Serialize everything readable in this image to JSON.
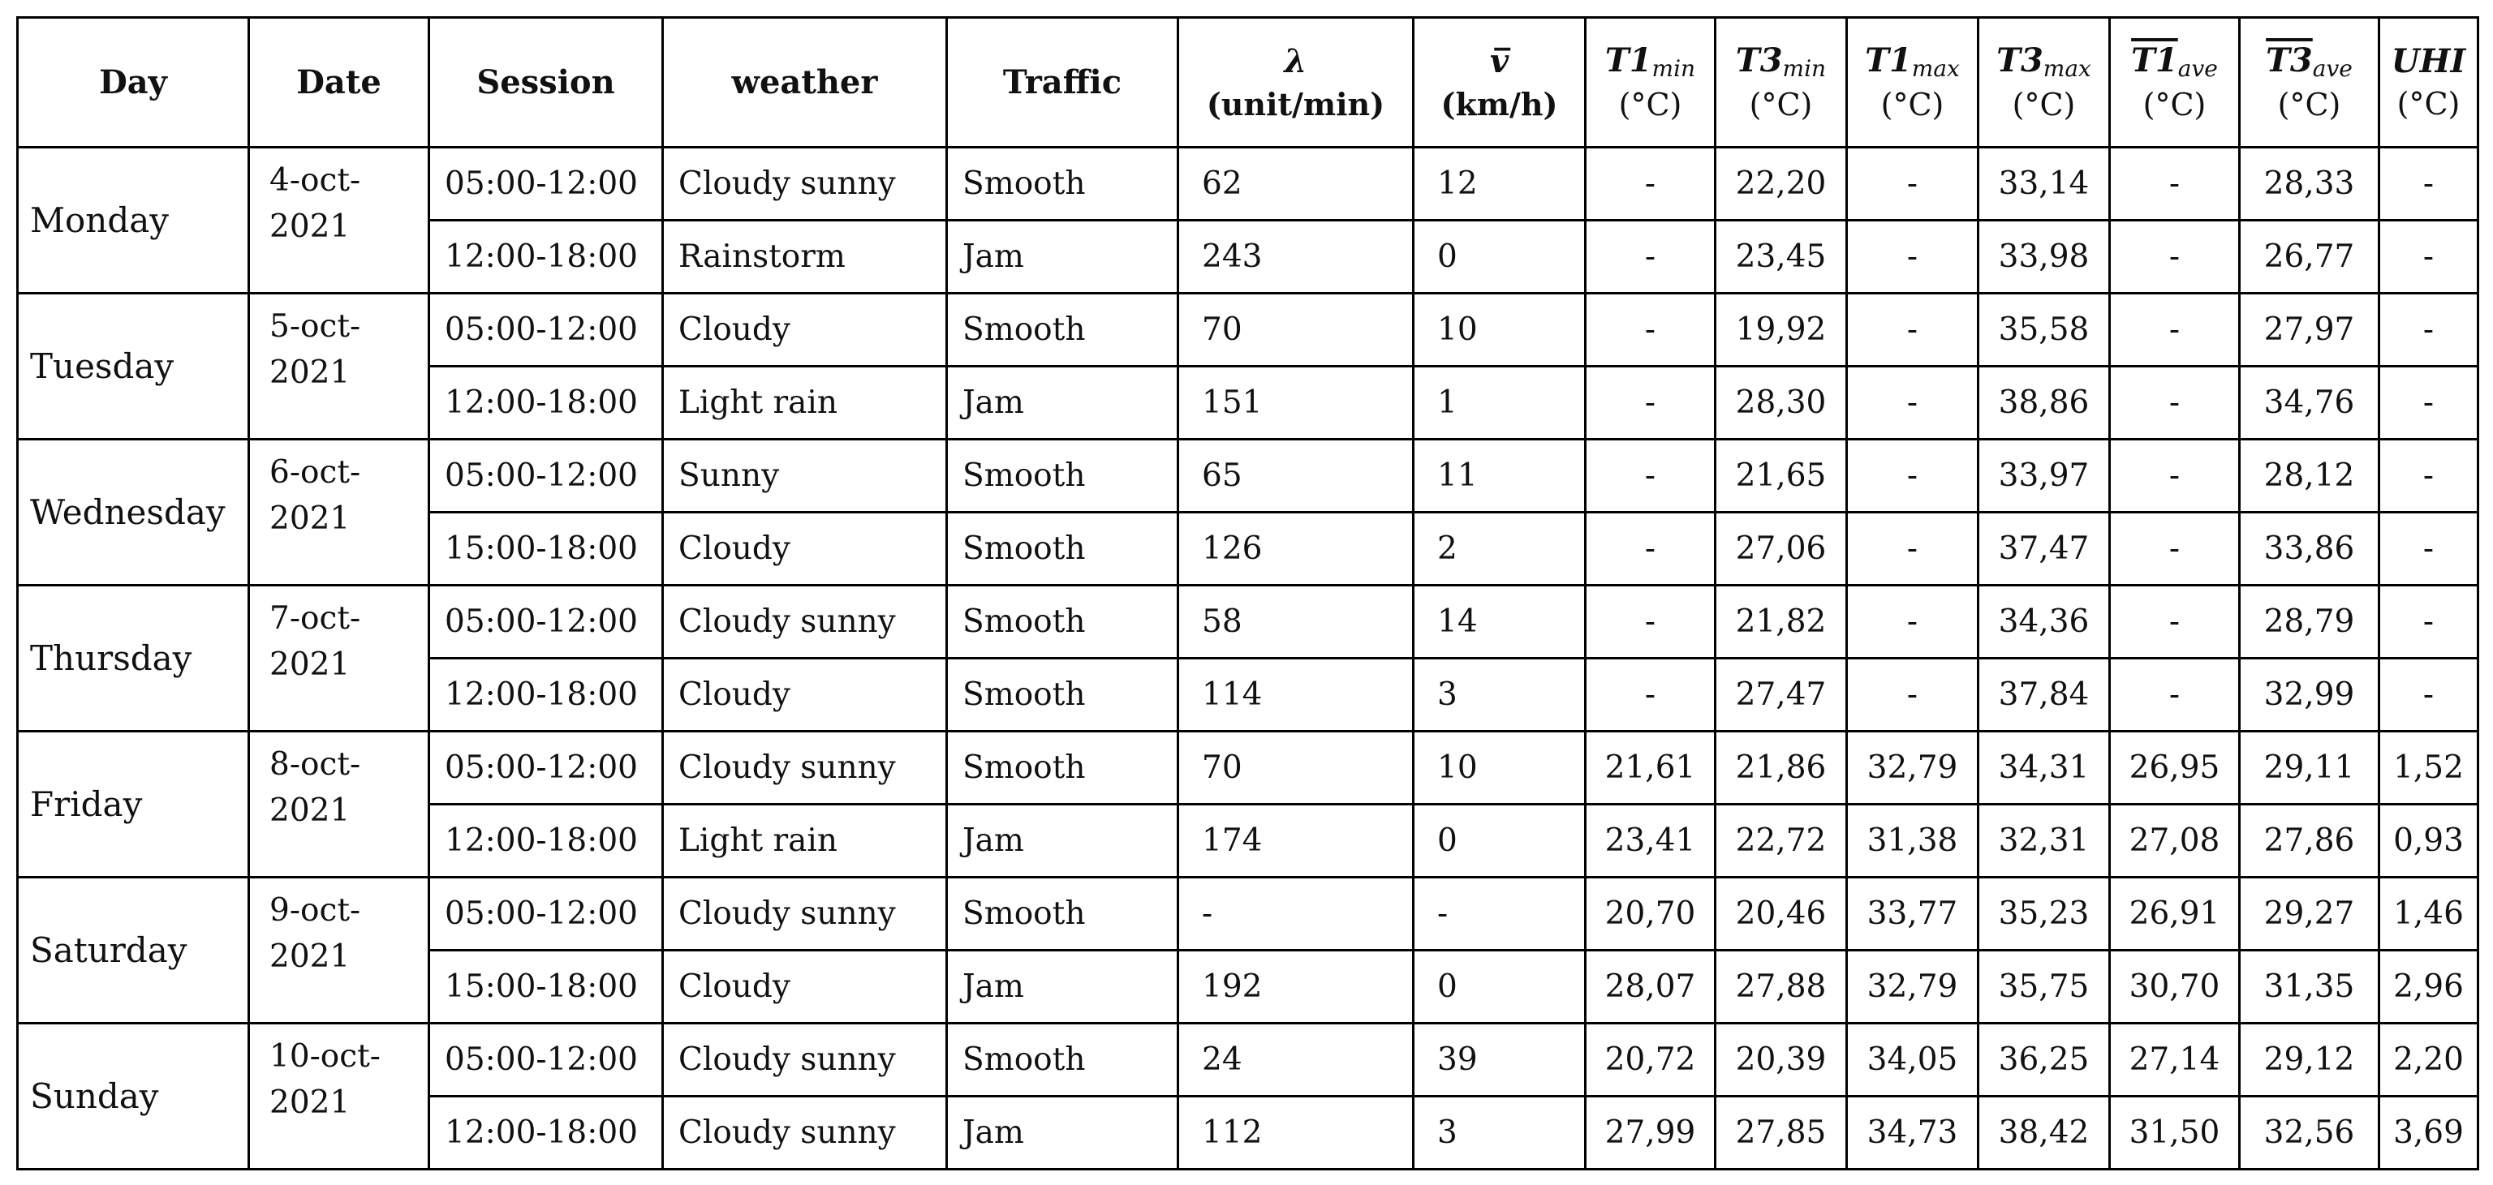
{
  "headers": {
    "day": "Day",
    "date": "Date",
    "session": "Session",
    "weather": "weather",
    "traffic": "Traffic",
    "lambda_symbol": "λ",
    "lambda_unit": "(unit/min)",
    "speed_symbol": "v̅",
    "speed_unit": "(km/h)",
    "t1min_main": "T1",
    "t1min_sub": "min",
    "t3min_main": "T3",
    "t3min_sub": "min",
    "t1max_main": "T1",
    "t1max_sub": "max",
    "t3max_main": "T3",
    "t3max_sub": "max",
    "t1ave_main": "T1",
    "t1ave_sub": "ave",
    "t3ave_main": "T3",
    "t3ave_sub": "ave",
    "uhi_main": "UHI",
    "temp_unit": "(°C)"
  },
  "days": [
    {
      "day": "Monday",
      "date_line1": "4-oct-",
      "date_line2": "2021",
      "rows": [
        {
          "session": "05:00-12:00",
          "weather": "Cloudy sunny",
          "traffic": "Smooth",
          "lambda": "62",
          "speed": "12",
          "t1min": "-",
          "t3min": "22,20",
          "t1max": "-",
          "t3max": "33,14",
          "t1ave": "-",
          "t3ave": "28,33",
          "uhi": "-"
        },
        {
          "session": "12:00-18:00",
          "weather": "Rainstorm",
          "traffic": "Jam",
          "lambda": "243",
          "speed": "0",
          "t1min": "-",
          "t3min": "23,45",
          "t1max": "-",
          "t3max": "33,98",
          "t1ave": "-",
          "t3ave": "26,77",
          "uhi": "-"
        }
      ]
    },
    {
      "day": "Tuesday",
      "date_line1": "5-oct-",
      "date_line2": "2021",
      "rows": [
        {
          "session": "05:00-12:00",
          "weather": "Cloudy",
          "traffic": "Smooth",
          "lambda": "70",
          "speed": "10",
          "t1min": "-",
          "t3min": "19,92",
          "t1max": "-",
          "t3max": "35,58",
          "t1ave": "-",
          "t3ave": "27,97",
          "uhi": "-"
        },
        {
          "session": "12:00-18:00",
          "weather": "Light rain",
          "traffic": "Jam",
          "lambda": "151",
          "speed": "1",
          "t1min": "-",
          "t3min": "28,30",
          "t1max": "-",
          "t3max": "38,86",
          "t1ave": "-",
          "t3ave": "34,76",
          "uhi": "-"
        }
      ]
    },
    {
      "day": "Wednesday",
      "date_line1": "6-oct-",
      "date_line2": "2021",
      "rows": [
        {
          "session": "05:00-12:00",
          "weather": "Sunny",
          "traffic": "Smooth",
          "lambda": "65",
          "speed": "11",
          "t1min": "-",
          "t3min": "21,65",
          "t1max": "-",
          "t3max": "33,97",
          "t1ave": "-",
          "t3ave": "28,12",
          "uhi": "-"
        },
        {
          "session": "15:00-18:00",
          "weather": "Cloudy",
          "traffic": "Smooth",
          "lambda": "126",
          "speed": "2",
          "t1min": "-",
          "t3min": "27,06",
          "t1max": "-",
          "t3max": "37,47",
          "t1ave": "-",
          "t3ave": "33,86",
          "uhi": "-"
        }
      ]
    },
    {
      "day": "Thursday",
      "date_line1": "7-oct-",
      "date_line2": "2021",
      "rows": [
        {
          "session": "05:00-12:00",
          "weather": "Cloudy sunny",
          "traffic": "Smooth",
          "lambda": "58",
          "speed": "14",
          "t1min": "-",
          "t3min": "21,82",
          "t1max": "-",
          "t3max": "34,36",
          "t1ave": "-",
          "t3ave": "28,79",
          "uhi": "-"
        },
        {
          "session": "12:00-18:00",
          "weather": "Cloudy",
          "traffic": "Smooth",
          "lambda": "114",
          "speed": "3",
          "t1min": "-",
          "t3min": "27,47",
          "t1max": "-",
          "t3max": "37,84",
          "t1ave": "-",
          "t3ave": "32,99",
          "uhi": "-"
        }
      ]
    },
    {
      "day": "Friday",
      "date_line1": "8-oct-",
      "date_line2": "2021",
      "rows": [
        {
          "session": "05:00-12:00",
          "weather": "Cloudy sunny",
          "traffic": "Smooth",
          "lambda": "70",
          "speed": "10",
          "t1min": "21,61",
          "t3min": "21,86",
          "t1max": "32,79",
          "t3max": "34,31",
          "t1ave": "26,95",
          "t3ave": "29,11",
          "uhi": "1,52"
        },
        {
          "session": "12:00-18:00",
          "weather": "Light rain",
          "traffic": "Jam",
          "lambda": "174",
          "speed": "0",
          "t1min": "23,41",
          "t3min": "22,72",
          "t1max": "31,38",
          "t3max": "32,31",
          "t1ave": "27,08",
          "t3ave": "27,86",
          "uhi": "0,93"
        }
      ]
    },
    {
      "day": "Saturday",
      "date_line1": "9-oct-",
      "date_line2": "2021",
      "rows": [
        {
          "session": "05:00-12:00",
          "weather": "Cloudy sunny",
          "traffic": "Smooth",
          "lambda": "-",
          "speed": "-",
          "t1min": "20,70",
          "t3min": "20,46",
          "t1max": "33,77",
          "t3max": "35,23",
          "t1ave": "26,91",
          "t3ave": "29,27",
          "uhi": "1,46"
        },
        {
          "session": "15:00-18:00",
          "weather": "Cloudy",
          "traffic": "Jam",
          "lambda": "192",
          "speed": "0",
          "t1min": "28,07",
          "t3min": "27,88",
          "t1max": "32,79",
          "t3max": "35,75",
          "t1ave": "30,70",
          "t3ave": "31,35",
          "uhi": "2,96"
        }
      ]
    },
    {
      "day": "Sunday",
      "date_line1": "10-oct-",
      "date_line2": "2021",
      "rows": [
        {
          "session": "05:00-12:00",
          "weather": "Cloudy sunny",
          "traffic": "Smooth",
          "lambda": "24",
          "speed": "39",
          "t1min": "20,72",
          "t3min": "20,39",
          "t1max": "34,05",
          "t3max": "36,25",
          "t1ave": "27,14",
          "t3ave": "29,12",
          "uhi": "2,20"
        },
        {
          "session": "12:00-18:00",
          "weather": "Cloudy sunny",
          "traffic": "Jam",
          "lambda": "112",
          "speed": "3",
          "t1min": "27,99",
          "t3min": "27,85",
          "t1max": "34,73",
          "t3max": "38,42",
          "t1ave": "31,50",
          "t3ave": "32,56",
          "uhi": "3,69"
        }
      ]
    }
  ]
}
